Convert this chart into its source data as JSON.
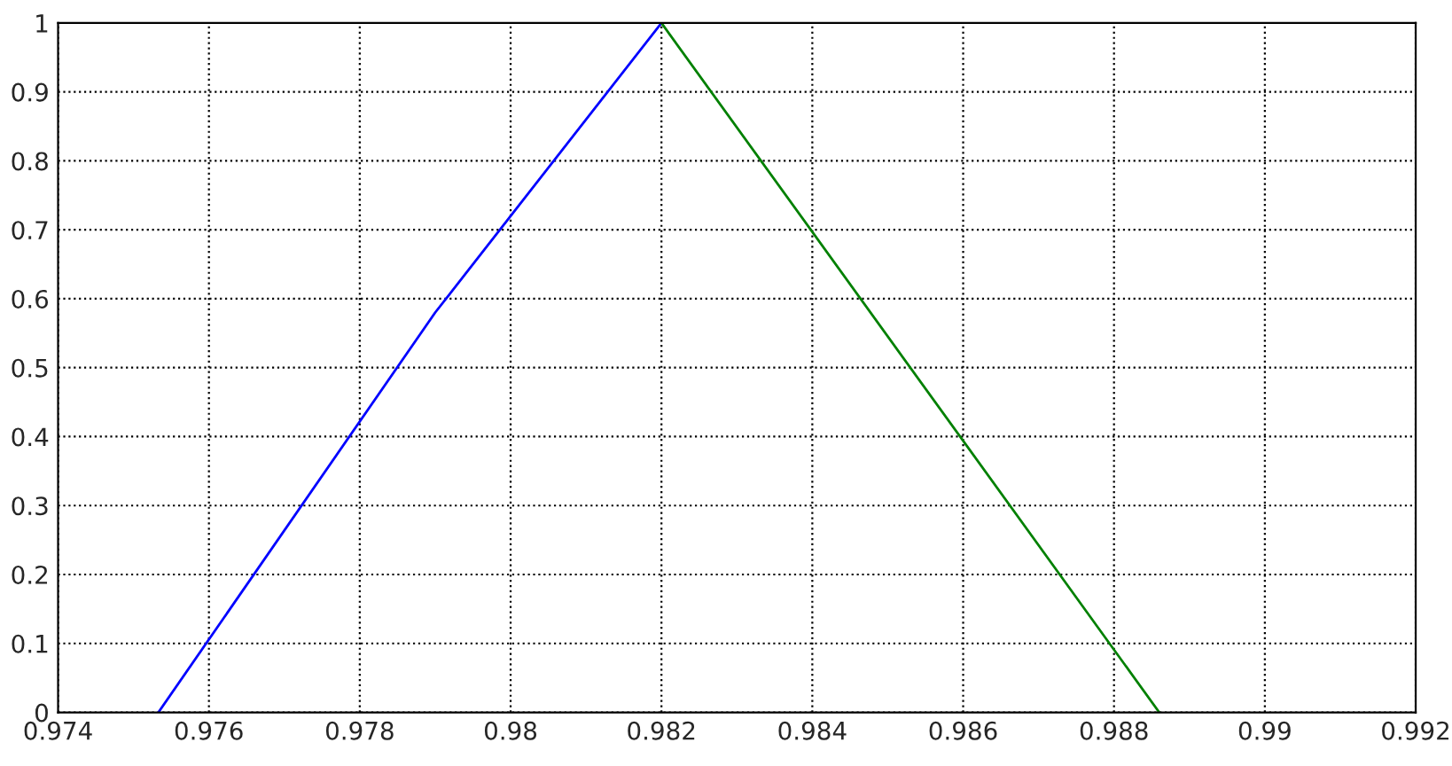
{
  "chart_data": {
    "type": "line",
    "xlim": [
      0.974,
      0.992
    ],
    "ylim": [
      0,
      1
    ],
    "xticks": [
      0.974,
      0.976,
      0.978,
      0.98,
      0.982,
      0.984,
      0.986,
      0.988,
      0.99,
      0.992
    ],
    "yticks": [
      0,
      0.1,
      0.2,
      0.3,
      0.4,
      0.5,
      0.6,
      0.7,
      0.8,
      0.9,
      1
    ],
    "grid": true,
    "line_style": "solid",
    "series": [
      {
        "color": "#0000ff",
        "x": [
          0.97533,
          0.979,
          0.982
        ],
        "values": [
          0,
          0.58,
          1
        ]
      },
      {
        "color": "#008000",
        "x": [
          0.982,
          0.9886
        ],
        "values": [
          1,
          0
        ]
      }
    ]
  }
}
